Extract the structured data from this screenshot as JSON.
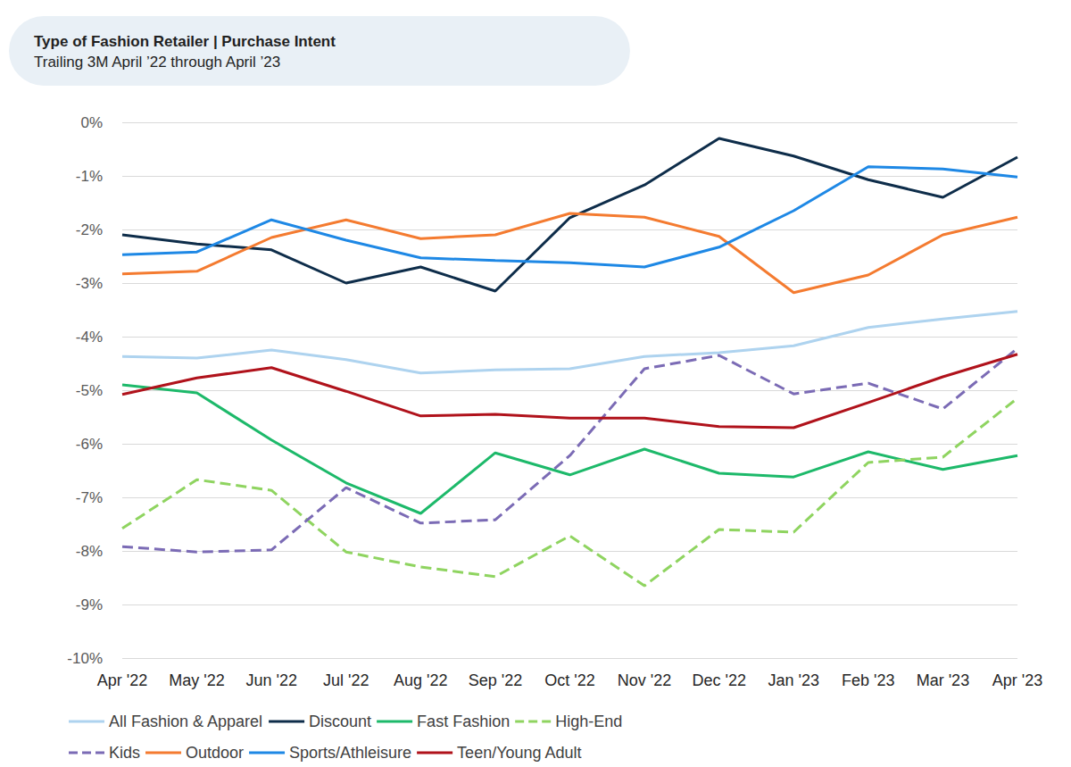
{
  "chart_data": {
    "type": "line",
    "title": "Type of Fashion Retailer | Purchase Intent",
    "subtitle": "Trailing 3M April ’22 through April ’23",
    "categories": [
      "Apr '22",
      "May '22",
      "Jun '22",
      "Jul '22",
      "Aug '22",
      "Sep '22",
      "Oct '22",
      "Nov '22",
      "Dec '22",
      "Jan '23",
      "Feb '23",
      "Mar '23",
      "Apr '23"
    ],
    "ylim": [
      -10,
      0
    ],
    "yticks": [
      {
        "value": -10,
        "label": "-10%"
      },
      {
        "value": -9,
        "label": "-9%"
      },
      {
        "value": -8,
        "label": "-8%"
      },
      {
        "value": -7,
        "label": "-7%"
      },
      {
        "value": -6,
        "label": "-6%"
      },
      {
        "value": -5,
        "label": "-5%"
      },
      {
        "value": -4,
        "label": "-4%"
      },
      {
        "value": -3,
        "label": "-3%"
      },
      {
        "value": -2,
        "label": "-2%"
      },
      {
        "value": -1,
        "label": "-1%"
      },
      {
        "value": 0,
        "label": "0%"
      }
    ],
    "grid": true,
    "legend": "bottom",
    "series": [
      {
        "name": "All Fashion & Apparel",
        "color": "#aed3ef",
        "line_style": "solid",
        "values": [
          -4.37,
          -4.4,
          -4.25,
          -4.43,
          -4.68,
          -4.62,
          -4.6,
          -4.37,
          -4.3,
          -4.17,
          -3.83,
          -3.67,
          -3.53
        ]
      },
      {
        "name": "Discount",
        "color": "#0e2d4a",
        "line_style": "solid",
        "values": [
          -2.1,
          -2.27,
          -2.38,
          -3.0,
          -2.7,
          -3.15,
          -1.78,
          -1.17,
          -0.3,
          -0.63,
          -1.07,
          -1.4,
          -0.65
        ]
      },
      {
        "name": "Fast Fashion",
        "color": "#1db96a",
        "line_style": "solid",
        "values": [
          -4.9,
          -5.05,
          -5.93,
          -6.73,
          -7.3,
          -6.17,
          -6.58,
          -6.1,
          -6.55,
          -6.62,
          -6.15,
          -6.48,
          -6.22
        ]
      },
      {
        "name": "High-End",
        "color": "#8fd460",
        "line_style": "dashed",
        "values": [
          -7.58,
          -6.67,
          -6.87,
          -8.02,
          -8.3,
          -8.48,
          -7.72,
          -8.65,
          -7.6,
          -7.65,
          -6.35,
          -6.25,
          -5.15
        ]
      },
      {
        "name": "Kids",
        "color": "#7b6bb5",
        "line_style": "dashed",
        "values": [
          -7.92,
          -8.02,
          -7.98,
          -6.82,
          -7.48,
          -7.42,
          -6.22,
          -4.6,
          -4.35,
          -5.07,
          -4.87,
          -5.35,
          -4.22
        ]
      },
      {
        "name": "Outdoor",
        "color": "#f47b30",
        "line_style": "solid",
        "values": [
          -2.83,
          -2.78,
          -2.15,
          -1.82,
          -2.17,
          -2.1,
          -1.7,
          -1.77,
          -2.13,
          -3.18,
          -2.85,
          -2.1,
          -1.77
        ]
      },
      {
        "name": "Sports/Athleisure",
        "color": "#1e88e5",
        "line_style": "solid",
        "values": [
          -2.47,
          -2.42,
          -1.82,
          -2.2,
          -2.53,
          -2.58,
          -2.62,
          -2.7,
          -2.33,
          -1.65,
          -0.83,
          -0.87,
          -1.02
        ]
      },
      {
        "name": "Teen/Young Adult",
        "color": "#b0121b",
        "line_style": "solid",
        "values": [
          -5.08,
          -4.77,
          -4.58,
          -5.02,
          -5.48,
          -5.45,
          -5.52,
          -5.52,
          -5.68,
          -5.7,
          -5.23,
          -4.75,
          -4.33
        ]
      }
    ]
  }
}
